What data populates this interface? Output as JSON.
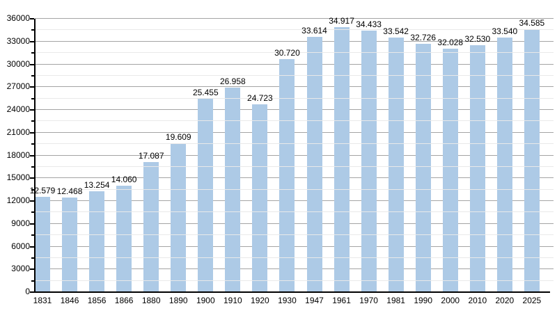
{
  "chart_data": {
    "type": "bar",
    "title": "",
    "xlabel": "",
    "ylabel": "",
    "categories": [
      "1831",
      "1846",
      "1856",
      "1866",
      "1880",
      "1890",
      "1900",
      "1910",
      "1920",
      "1930",
      "1947",
      "1961",
      "1970",
      "1981",
      "1990",
      "2000",
      "2010",
      "2020",
      "2025"
    ],
    "values": [
      12579,
      12468,
      13254,
      14060,
      17087,
      19609,
      25455,
      26958,
      24723,
      30720,
      33614,
      34917,
      34433,
      33542,
      32726,
      32028,
      32530,
      33540,
      34585
    ],
    "value_labels": [
      "12.579",
      "12.468",
      "13.254",
      "14.060",
      "17.087",
      "19.609",
      "25.455",
      "26.958",
      "24.723",
      "30.720",
      "33.614",
      "34.917",
      "34.433",
      "33.542",
      "32.726",
      "32.028",
      "32.530",
      "33.540",
      "34.585"
    ],
    "ylim": [
      0,
      36000
    ],
    "y_major_step": 3000,
    "y_minor_step": 1500,
    "y_tick_labels": [
      "0",
      "3000",
      "6000",
      "9000",
      "12000",
      "15000",
      "18000",
      "21000",
      "24000",
      "27000",
      "30000",
      "33000",
      "36000"
    ],
    "grid": true,
    "legend_position": "none",
    "colors": {
      "bar_fill": "#adcae6",
      "major_grid": "#a4a4a4",
      "minor_grid": "#e9e9e9",
      "axis": "#000000",
      "text": "#000000",
      "background": "#ffffff"
    }
  }
}
